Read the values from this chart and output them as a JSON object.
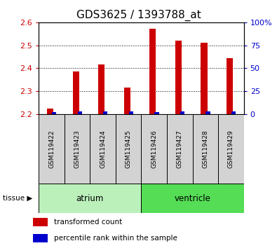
{
  "title": "GDS3625 / 1393788_at",
  "samples": [
    "GSM119422",
    "GSM119423",
    "GSM119424",
    "GSM119425",
    "GSM119426",
    "GSM119427",
    "GSM119428",
    "GSM119429"
  ],
  "transformed_count": [
    2.225,
    2.385,
    2.415,
    2.315,
    2.572,
    2.52,
    2.51,
    2.445
  ],
  "percentile_pct": [
    2,
    3,
    3,
    3,
    2,
    3,
    3,
    3
  ],
  "tissue_groups": [
    {
      "label": "atrium",
      "start": 0,
      "end": 3,
      "color": "#bbf0bb"
    },
    {
      "label": "ventricle",
      "start": 4,
      "end": 7,
      "color": "#55dd55"
    }
  ],
  "ylim_left": [
    2.2,
    2.6
  ],
  "ylim_right": [
    0,
    100
  ],
  "yticks_left": [
    2.2,
    2.3,
    2.4,
    2.5,
    2.6
  ],
  "yticks_right": [
    0,
    25,
    50,
    75,
    100
  ],
  "bar_color_red": "#cc0000",
  "bar_color_blue": "#0000cc",
  "baseline": 2.2,
  "background_color": "#ffffff",
  "tick_label_color_left": "#cc0000",
  "tick_label_color_right": "#0000cc",
  "title_fontsize": 11,
  "legend_items": [
    "transformed count",
    "percentile rank within the sample"
  ]
}
